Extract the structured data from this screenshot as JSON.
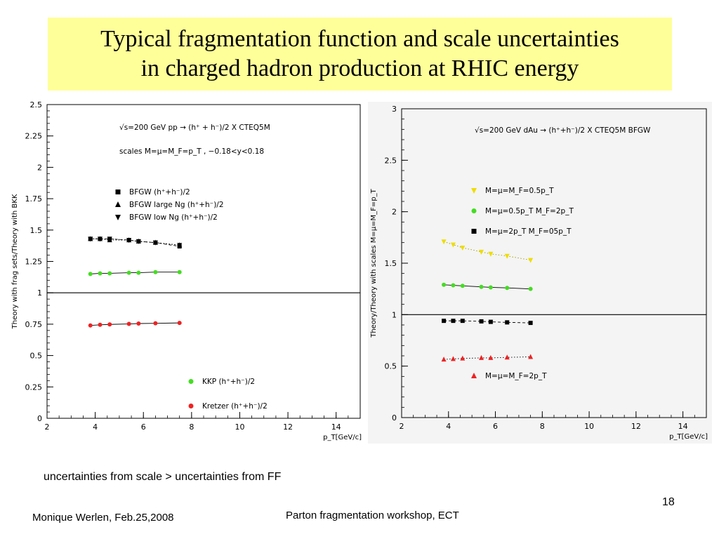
{
  "slide": {
    "title_line1": "Typical fragmentation function and scale uncertainties",
    "title_line2": "in charged hadron production at RHIC energy",
    "caption": "uncertainties from scale > uncertainties from FF",
    "author": "Monique Werlen, Feb.25,2008",
    "workshop": "Parton fragmentation workshop, ECT",
    "page_number": "18"
  },
  "chart_data": [
    {
      "type": "scatter",
      "annotation_line1": "√s=200 GeV pp → (h⁺ + h⁻)/2 X CTEQ5M",
      "annotation_line2": "scales M=μ=M_F=p_T , −0.18<y<0.18",
      "xlabel": "p_T[GeV/c]",
      "ylabel": "Theory with frag sets/Theory with BKK",
      "xlim": [
        2,
        15
      ],
      "ylim": [
        0,
        2.5
      ],
      "x_ticks": [
        "2",
        "4",
        "6",
        "8",
        "10",
        "12",
        "14"
      ],
      "y_ticks": [
        "0",
        "0.25",
        "0.5",
        "0.75",
        "1",
        "1.25",
        "1.5",
        "1.75",
        "2",
        "2.25",
        "2.5"
      ],
      "reference_line": 1,
      "legend_top": [
        {
          "marker": "square",
          "text": "BFGW (h⁺+h⁻)/2"
        },
        {
          "marker": "triangle-up",
          "text": "BFGW  large Ng (h⁺+h⁻)/2"
        },
        {
          "marker": "triangle-down",
          "text": "BFGW  low Ng (h⁺+h⁻)/2"
        }
      ],
      "legend_bottom": [
        {
          "marker": "circle",
          "color": "#44dd22",
          "text": "KKP (h⁺+h⁻)/2"
        },
        {
          "marker": "circle",
          "color": "#ee2222",
          "text": "Kretzer (h⁺+h⁻)/2"
        }
      ],
      "x": [
        3.8,
        4.2,
        4.6,
        5.4,
        5.8,
        6.5,
        7.5
      ],
      "series": [
        {
          "marker": "square",
          "color": "#000000",
          "line": "dashed",
          "values": [
            1.43,
            1.43,
            1.43,
            1.42,
            1.41,
            1.4,
            1.37
          ]
        },
        {
          "marker": "triangle-up",
          "color": "#000000",
          "line": "dotted",
          "values": [
            1.43,
            1.43,
            1.42,
            1.42,
            1.41,
            1.4,
            1.38
          ]
        },
        {
          "marker": "triangle-down",
          "color": "#000000",
          "line": "dotted",
          "values": [
            1.43,
            1.43,
            1.43,
            1.42,
            1.41,
            1.4,
            1.38
          ]
        },
        {
          "marker": "circle",
          "color": "#44dd22",
          "line": "solid",
          "values": [
            1.15,
            1.155,
            1.155,
            1.16,
            1.16,
            1.165,
            1.165
          ]
        },
        {
          "marker": "circle",
          "color": "#ee2222",
          "line": "solid",
          "values": [
            0.74,
            0.745,
            0.748,
            0.752,
            0.755,
            0.757,
            0.76
          ]
        }
      ]
    },
    {
      "type": "scatter",
      "annotation_line1": "√s=200 GeV dAu → (h⁺+h⁻)/2 X CTEQ5M BFGW",
      "xlabel": "p_T[GeV/c]",
      "ylabel": "Theory/Theory with scales M=μ=M_F=p_T",
      "xlim": [
        2,
        15
      ],
      "ylim": [
        0,
        3
      ],
      "x_ticks": [
        "2",
        "4",
        "6",
        "8",
        "10",
        "12",
        "14"
      ],
      "y_ticks": [
        "0",
        "0.5",
        "1",
        "1.5",
        "2",
        "2.5",
        "3"
      ],
      "reference_line": 1,
      "legend_top": [
        {
          "marker": "triangle-down",
          "color": "#eedd00",
          "text": "M=μ=M_F=0.5p_T"
        },
        {
          "marker": "circle",
          "color": "#44dd22",
          "text": "M=μ=0.5p_T M_F=2p_T"
        },
        {
          "marker": "square",
          "color": "#000000",
          "text": "M=μ=2p_T M_F=05p_T"
        }
      ],
      "legend_bottom": [
        {
          "marker": "triangle-up",
          "color": "#ee2222",
          "text": "M=μ=M_F=2p_T"
        }
      ],
      "x": [
        3.8,
        4.2,
        4.6,
        5.4,
        5.8,
        6.5,
        7.5
      ],
      "series": [
        {
          "marker": "triangle-down",
          "color": "#eedd00",
          "line": "dotted",
          "values": [
            1.71,
            1.68,
            1.65,
            1.61,
            1.59,
            1.57,
            1.53
          ]
        },
        {
          "marker": "circle",
          "color": "#44dd22",
          "line": "solid",
          "values": [
            1.29,
            1.285,
            1.28,
            1.27,
            1.265,
            1.26,
            1.25
          ]
        },
        {
          "marker": "square",
          "color": "#000000",
          "line": "dashed",
          "values": [
            0.94,
            0.94,
            0.94,
            0.935,
            0.93,
            0.925,
            0.92
          ]
        },
        {
          "marker": "triangle-up",
          "color": "#ee2222",
          "line": "dotted",
          "values": [
            0.565,
            0.57,
            0.575,
            0.58,
            0.58,
            0.585,
            0.59
          ]
        }
      ]
    }
  ]
}
